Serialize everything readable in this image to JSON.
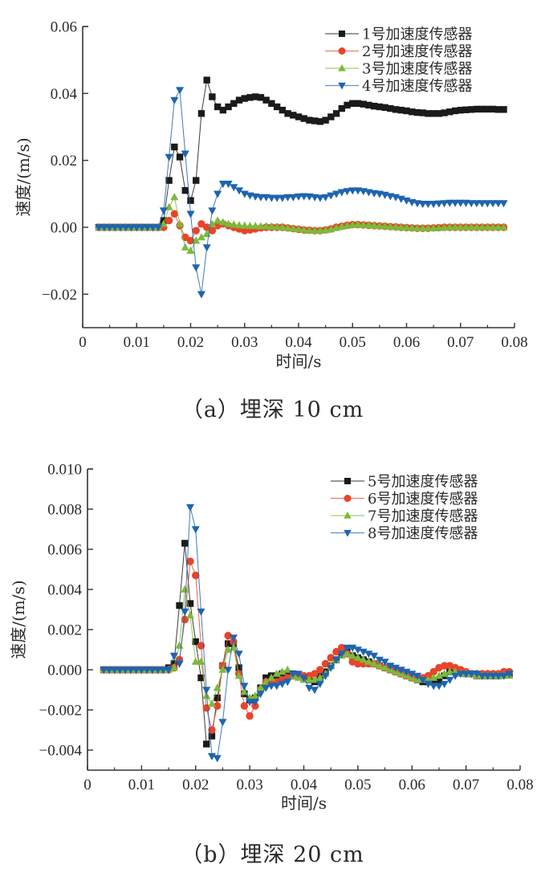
{
  "chart_data": [
    {
      "type": "line",
      "id": "a",
      "caption": "（a）埋深 10 cm",
      "xlabel": "时间/s",
      "ylabel": "速度/(m/s)",
      "xlim": [
        0,
        0.08
      ],
      "ylim": [
        -0.03,
        0.06
      ],
      "xticks": [
        0,
        0.01,
        0.02,
        0.03,
        0.04,
        0.05,
        0.06,
        0.07,
        0.08
      ],
      "xtick_labels": [
        "0",
        "0.01",
        "0.02",
        "0.03",
        "0.04",
        "0.05",
        "0.06",
        "0.07",
        "0.08"
      ],
      "yticks": [
        -0.02,
        0.0,
        0.02,
        0.04,
        0.06
      ],
      "ytick_labels": [
        "−0.02",
        "0.00",
        "0.02",
        "0.04",
        "0.06"
      ],
      "grid": false,
      "legend_position": "top-right",
      "x": [
        0.003,
        0.004,
        0.005,
        0.006,
        0.007,
        0.008,
        0.009,
        0.01,
        0.011,
        0.012,
        0.013,
        0.014,
        0.015,
        0.016,
        0.017,
        0.018,
        0.019,
        0.02,
        0.021,
        0.022,
        0.023,
        0.024,
        0.025,
        0.026,
        0.027,
        0.028,
        0.029,
        0.03,
        0.031,
        0.032,
        0.033,
        0.034,
        0.035,
        0.036,
        0.037,
        0.038,
        0.039,
        0.04,
        0.041,
        0.042,
        0.043,
        0.044,
        0.045,
        0.046,
        0.047,
        0.048,
        0.049,
        0.05,
        0.051,
        0.052,
        0.053,
        0.054,
        0.055,
        0.056,
        0.057,
        0.058,
        0.059,
        0.06,
        0.061,
        0.062,
        0.063,
        0.064,
        0.065,
        0.066,
        0.067,
        0.068,
        0.069,
        0.07,
        0.071,
        0.072,
        0.073,
        0.074,
        0.075,
        0.076,
        0.077,
        0.078
      ],
      "series": [
        {
          "name": "1号加速度传感器",
          "color": "#1a1a1a",
          "marker": "square",
          "values": [
            0,
            0,
            0,
            0,
            0,
            0,
            0,
            0,
            0,
            0,
            0,
            0,
            0.002,
            0.014,
            0.024,
            0.021,
            0.011,
            0.008,
            0.014,
            0.034,
            0.044,
            0.039,
            0.036,
            0.035,
            0.036,
            0.037,
            0.038,
            0.0385,
            0.0388,
            0.039,
            0.0388,
            0.038,
            0.037,
            0.036,
            0.035,
            0.034,
            0.0335,
            0.033,
            0.0325,
            0.032,
            0.0318,
            0.0316,
            0.032,
            0.033,
            0.034,
            0.0355,
            0.0365,
            0.037,
            0.037,
            0.0368,
            0.0365,
            0.0362,
            0.036,
            0.0358,
            0.0355,
            0.0352,
            0.035,
            0.0348,
            0.0345,
            0.0343,
            0.0342,
            0.034,
            0.034,
            0.034,
            0.0342,
            0.0345,
            0.0348,
            0.035,
            0.0351,
            0.0352,
            0.0353,
            0.0353,
            0.0353,
            0.0353,
            0.0352,
            0.0352
          ]
        },
        {
          "name": "2号加速度传感器",
          "color": "#e8442a",
          "marker": "circle",
          "values": [
            0,
            0,
            0,
            0,
            0,
            0,
            0,
            0,
            0,
            0,
            0,
            0,
            0,
            0.002,
            0.004,
            0.0005,
            -0.003,
            -0.004,
            -0.001,
            0.001,
            0,
            -0.001,
            0.0005,
            0.001,
            0.0005,
            0,
            -0.0005,
            -0.001,
            -0.0008,
            -0.0005,
            -0.0002,
            0,
            0,
            0,
            0,
            -0.0002,
            -0.0004,
            -0.0006,
            -0.0008,
            -0.0009,
            -0.001,
            -0.001,
            -0.0008,
            -0.0005,
            0,
            0.0003,
            0.0006,
            0.0008,
            0.0008,
            0.0007,
            0.0006,
            0.0005,
            0.0004,
            0.0003,
            0.0002,
            0.0001,
            0,
            -0.0001,
            -0.0002,
            -0.0003,
            -0.0003,
            -0.0003,
            -0.0002,
            -0.0001,
            0,
            0,
            0,
            0,
            0,
            0,
            0,
            0,
            0,
            0,
            0,
            0
          ]
        },
        {
          "name": "3号加速度传感器",
          "color": "#7cba3a",
          "marker": "triangle-up",
          "values": [
            0,
            0,
            0,
            0,
            0,
            0,
            0,
            0,
            0,
            0,
            0,
            0,
            0.001,
            0.006,
            0.009,
            0.001,
            -0.006,
            -0.007,
            -0.004,
            -0.003,
            -0.002,
            0.001,
            0.002,
            0.0015,
            0.001,
            0.0008,
            0.0006,
            0.0005,
            0.0004,
            0.0004,
            0.0003,
            0.0003,
            0.0002,
            0.0001,
            0,
            -0.0002,
            -0.0004,
            -0.0006,
            -0.0008,
            -0.001,
            -0.001,
            -0.001,
            -0.0009,
            -0.0006,
            -0.0002,
            0.0002,
            0.0005,
            0.0007,
            0.0008,
            0.0007,
            0.0006,
            0.0005,
            0.0004,
            0.0003,
            0.0002,
            0.0001,
            0,
            -0.0001,
            -0.0002,
            -0.0003,
            -0.0003,
            -0.0003,
            -0.0003,
            -0.0002,
            -0.0001,
            0,
            0,
            0,
            0,
            0,
            0,
            0,
            0,
            0,
            0,
            0
          ]
        },
        {
          "name": "4号加速度传感器",
          "color": "#1e64b0",
          "marker": "triangle-down",
          "values": [
            0,
            0,
            0,
            0,
            0,
            0,
            0,
            0,
            0,
            0,
            0,
            0,
            0.005,
            0.021,
            0.038,
            0.041,
            0.022,
            0.004,
            -0.012,
            -0.02,
            -0.006,
            0.005,
            0.01,
            0.013,
            0.013,
            0.012,
            0.011,
            0.01,
            0.0095,
            0.0092,
            0.009,
            0.009,
            0.0088,
            0.0088,
            0.0088,
            0.009,
            0.009,
            0.0092,
            0.0093,
            0.0092,
            0.009,
            0.0088,
            0.009,
            0.0095,
            0.01,
            0.0105,
            0.0108,
            0.011,
            0.011,
            0.0108,
            0.0105,
            0.0102,
            0.01,
            0.0097,
            0.0093,
            0.009,
            0.0085,
            0.008,
            0.0075,
            0.0072,
            0.007,
            0.007,
            0.007,
            0.0071,
            0.0072,
            0.0073,
            0.0073,
            0.0073,
            0.0073,
            0.0072,
            0.0072,
            0.0072,
            0.0072,
            0.0072,
            0.0072,
            0.0072
          ]
        }
      ]
    },
    {
      "type": "line",
      "id": "b",
      "caption": "（b）埋深 20 cm",
      "xlabel": "时间/s",
      "ylabel": "速度/(m/s)",
      "xlim": [
        0,
        0.08
      ],
      "ylim": [
        -0.005,
        0.01
      ],
      "xticks": [
        0,
        0.01,
        0.02,
        0.03,
        0.04,
        0.05,
        0.06,
        0.07,
        0.08
      ],
      "xtick_labels": [
        "0",
        "0.01",
        "0.02",
        "0.03",
        "0.04",
        "0.05",
        "0.06",
        "0.07",
        "0.08"
      ],
      "yticks": [
        -0.004,
        -0.002,
        0.0,
        0.002,
        0.004,
        0.006,
        0.008,
        0.01
      ],
      "ytick_labels": [
        "−0.004",
        "−0.002",
        "0.000",
        "0.002",
        "0.004",
        "0.006",
        "0.008",
        "0.010"
      ],
      "grid": false,
      "legend_position": "top-right",
      "x": [
        0.003,
        0.004,
        0.005,
        0.006,
        0.007,
        0.008,
        0.009,
        0.01,
        0.011,
        0.012,
        0.013,
        0.014,
        0.015,
        0.016,
        0.017,
        0.018,
        0.019,
        0.02,
        0.021,
        0.022,
        0.023,
        0.024,
        0.025,
        0.026,
        0.027,
        0.028,
        0.029,
        0.03,
        0.031,
        0.032,
        0.033,
        0.034,
        0.035,
        0.036,
        0.037,
        0.038,
        0.039,
        0.04,
        0.041,
        0.042,
        0.043,
        0.044,
        0.045,
        0.046,
        0.047,
        0.048,
        0.049,
        0.05,
        0.051,
        0.052,
        0.053,
        0.054,
        0.055,
        0.056,
        0.057,
        0.058,
        0.059,
        0.06,
        0.061,
        0.062,
        0.063,
        0.064,
        0.065,
        0.066,
        0.067,
        0.068,
        0.069,
        0.07,
        0.071,
        0.072,
        0.073,
        0.074,
        0.075,
        0.076,
        0.077,
        0.078
      ],
      "series": [
        {
          "name": "5号加速度传感器",
          "color": "#1a1a1a",
          "marker": "square",
          "values": [
            0,
            0,
            0,
            0,
            0,
            0,
            0,
            0,
            0,
            0,
            0,
            0,
            0.0001,
            0.0003,
            0.0032,
            0.0063,
            0.0033,
            0.0014,
            -0.0004,
            -0.0037,
            -0.0033,
            -0.0014,
            0.0002,
            0.0013,
            0.0013,
            0.0001,
            -0.0012,
            -0.0015,
            -0.0014,
            -0.0009,
            -0.0004,
            -0.0003,
            -0.0003,
            -0.0002,
            -0.0002,
            -0.0002,
            -0.0003,
            -0.0004,
            -0.0005,
            -0.0006,
            -0.0003,
            -0.0001,
            0.0002,
            0.0005,
            0.0008,
            0.0009,
            0.0007,
            0.0006,
            0.0005,
            0.0004,
            0.0003,
            0.0002,
            0.0001,
            0,
            -0.0001,
            -0.0002,
            -0.0003,
            -0.0004,
            -0.0005,
            -0.0006,
            -0.0006,
            -0.0006,
            -0.0005,
            -0.0003,
            -0.0001,
            0,
            -0.0001,
            -0.0002,
            -0.0002,
            -0.0003,
            -0.0003,
            -0.0003,
            -0.0003,
            -0.0003,
            -0.0002,
            -0.0002
          ]
        },
        {
          "name": "6号加速度传感器",
          "color": "#e8442a",
          "marker": "circle",
          "values": [
            0,
            0,
            0,
            0,
            0,
            0,
            0,
            0,
            0,
            0,
            0,
            0,
            0,
            0.0001,
            0.0005,
            0.0025,
            0.0054,
            0.0047,
            0.0012,
            -0.0019,
            -0.003,
            -0.0018,
            0.0002,
            0.0017,
            0.0014,
            -0.0002,
            -0.0018,
            -0.0023,
            -0.0018,
            -0.001,
            -0.0006,
            -0.0006,
            -0.0006,
            -0.0005,
            -0.0004,
            -0.0003,
            -0.0003,
            -0.0003,
            -0.0003,
            -0.0002,
            0,
            0.0003,
            0.0006,
            0.0009,
            0.0011,
            0.0008,
            0.0004,
            0.0003,
            0.0003,
            0.0003,
            0.0003,
            0.0002,
            0.0001,
            0,
            -0.0001,
            -0.0002,
            -0.0003,
            -0.0004,
            -0.0004,
            -0.0004,
            -0.0003,
            -0.0001,
            0.0001,
            0.0002,
            0.0002,
            0.0001,
            0,
            -0.0001,
            -0.0002,
            -0.0002,
            -0.0002,
            -0.0002,
            -0.0002,
            -0.0002,
            -0.0001,
            -0.0001
          ]
        },
        {
          "name": "7号加速度传感器",
          "color": "#7cba3a",
          "marker": "triangle-up",
          "values": [
            0,
            0,
            0,
            0,
            0,
            0,
            0,
            0,
            0,
            0,
            0,
            0,
            0,
            0.0001,
            0.0012,
            0.004,
            0.0027,
            0.0004,
            0.0004,
            -0.0013,
            -0.0017,
            -0.0009,
            0,
            0.001,
            0.0011,
            -0.0003,
            -0.0011,
            -0.0014,
            -0.0013,
            -0.0009,
            -0.0006,
            -0.0004,
            -0.0002,
            -0.0001,
            0,
            -0.0003,
            -0.0004,
            -0.0005,
            -0.0005,
            -0.0005,
            -0.0004,
            -0.0002,
            0.0002,
            0.0005,
            0.0007,
            0.0008,
            0.0007,
            0.0006,
            0.0005,
            0.0004,
            0.0003,
            0.0002,
            0.0001,
            0,
            -0.0001,
            -0.0002,
            -0.0003,
            -0.0004,
            -0.0005,
            -0.0005,
            -0.0005,
            -0.0004,
            -0.0003,
            -0.0002,
            -0.0001,
            -0.0001,
            -0.0002,
            -0.0002,
            -0.0002,
            -0.0003,
            -0.0003,
            -0.0003,
            -0.0003,
            -0.0003,
            -0.0003,
            -0.0003
          ]
        },
        {
          "name": "8号加速度传感器",
          "color": "#1e64b0",
          "marker": "triangle-down",
          "values": [
            0,
            0,
            0,
            0,
            0,
            0,
            0,
            0,
            0,
            0,
            0,
            0,
            0,
            0.0007,
            0.0003,
            0.0029,
            0.0081,
            0.007,
            0.0029,
            -0.001,
            -0.0043,
            -0.0044,
            -0.0026,
            0,
            0.0016,
            0.0008,
            -0.0008,
            -0.0016,
            -0.0016,
            -0.0012,
            -0.0009,
            -0.0008,
            -0.0008,
            -0.0007,
            -0.0006,
            -0.0002,
            -0.0002,
            -0.0004,
            -0.0009,
            -0.001,
            -0.0007,
            -0.0003,
            0.0001,
            0.0005,
            0.0008,
            0.0011,
            0.0011,
            0.001,
            0.0009,
            0.0008,
            0.0007,
            0.0005,
            0.0004,
            0.0002,
            0.0001,
            0,
            -0.0001,
            -0.0002,
            -0.0003,
            -0.0005,
            -0.0007,
            -0.0008,
            -0.0008,
            -0.0007,
            -0.0005,
            -0.0003,
            -0.0002,
            -0.0002,
            -0.0002,
            -0.0002,
            -0.0003,
            -0.0003,
            -0.0003,
            -0.0003,
            -0.0003,
            -0.0002
          ]
        }
      ]
    }
  ]
}
